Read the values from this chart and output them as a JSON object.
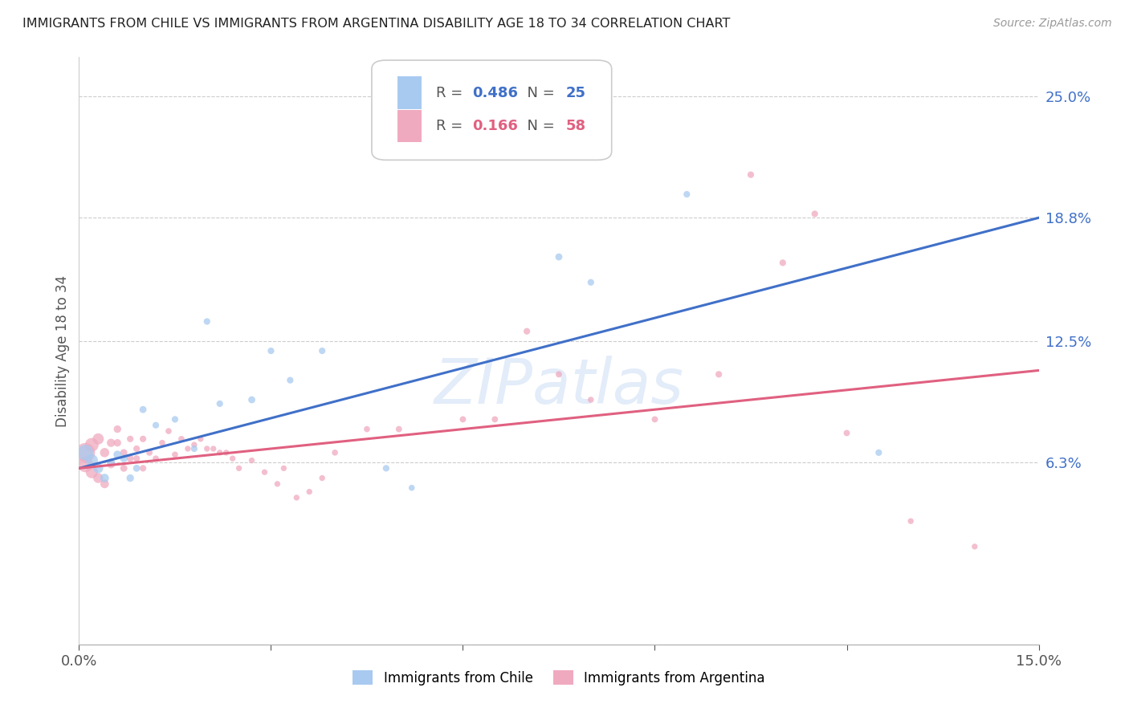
{
  "title": "IMMIGRANTS FROM CHILE VS IMMIGRANTS FROM ARGENTINA DISABILITY AGE 18 TO 34 CORRELATION CHART",
  "source": "Source: ZipAtlas.com",
  "ylabel": "Disability Age 18 to 34",
  "xlim": [
    0.0,
    0.15
  ],
  "ylim": [
    -0.03,
    0.27
  ],
  "ytick_positions": [
    0.063,
    0.125,
    0.188,
    0.25
  ],
  "ytick_labels": [
    "6.3%",
    "12.5%",
    "18.8%",
    "25.0%"
  ],
  "blue_R": 0.486,
  "blue_N": 25,
  "pink_R": 0.166,
  "pink_N": 58,
  "blue_color": "#a8caf0",
  "pink_color": "#f0aac0",
  "blue_line_color": "#4070c8",
  "pink_line_color": "#e06080",
  "blue_label_color": "#4070c8",
  "watermark_text": "ZIPatlas",
  "blue_line_x": [
    0.0,
    0.15
  ],
  "blue_line_y": [
    0.06,
    0.188
  ],
  "pink_line_x": [
    0.0,
    0.15
  ],
  "pink_line_y": [
    0.06,
    0.11
  ],
  "blue_points_x": [
    0.001,
    0.002,
    0.003,
    0.004,
    0.005,
    0.006,
    0.007,
    0.008,
    0.009,
    0.01,
    0.012,
    0.015,
    0.018,
    0.02,
    0.022,
    0.027,
    0.03,
    0.033,
    0.038,
    0.048,
    0.052,
    0.075,
    0.08,
    0.095,
    0.125
  ],
  "blue_points_y": [
    0.068,
    0.064,
    0.06,
    0.055,
    0.063,
    0.067,
    0.065,
    0.055,
    0.06,
    0.09,
    0.082,
    0.085,
    0.07,
    0.135,
    0.093,
    0.095,
    0.12,
    0.105,
    0.12,
    0.06,
    0.05,
    0.168,
    0.155,
    0.2,
    0.068
  ],
  "blue_sizes": [
    200,
    120,
    80,
    60,
    50,
    50,
    45,
    45,
    40,
    40,
    35,
    35,
    35,
    35,
    35,
    40,
    35,
    35,
    35,
    35,
    30,
    40,
    35,
    35,
    35
  ],
  "pink_points_x": [
    0.001,
    0.001,
    0.002,
    0.002,
    0.003,
    0.003,
    0.004,
    0.004,
    0.005,
    0.005,
    0.006,
    0.006,
    0.007,
    0.007,
    0.008,
    0.008,
    0.009,
    0.009,
    0.01,
    0.01,
    0.011,
    0.012,
    0.013,
    0.014,
    0.015,
    0.016,
    0.017,
    0.018,
    0.019,
    0.02,
    0.021,
    0.022,
    0.023,
    0.024,
    0.025,
    0.027,
    0.029,
    0.031,
    0.032,
    0.034,
    0.036,
    0.038,
    0.04,
    0.045,
    0.05,
    0.06,
    0.065,
    0.07,
    0.075,
    0.08,
    0.09,
    0.1,
    0.105,
    0.11,
    0.115,
    0.12,
    0.13,
    0.14
  ],
  "pink_points_y": [
    0.068,
    0.062,
    0.072,
    0.058,
    0.075,
    0.055,
    0.068,
    0.052,
    0.073,
    0.062,
    0.08,
    0.073,
    0.06,
    0.068,
    0.065,
    0.075,
    0.07,
    0.065,
    0.075,
    0.06,
    0.068,
    0.065,
    0.073,
    0.079,
    0.067,
    0.075,
    0.07,
    0.072,
    0.075,
    0.07,
    0.07,
    0.068,
    0.068,
    0.065,
    0.06,
    0.064,
    0.058,
    0.052,
    0.06,
    0.045,
    0.048,
    0.055,
    0.068,
    0.08,
    0.08,
    0.085,
    0.085,
    0.13,
    0.108,
    0.095,
    0.085,
    0.108,
    0.21,
    0.165,
    0.19,
    0.078,
    0.033,
    0.02
  ],
  "pink_sizes": [
    300,
    200,
    150,
    120,
    100,
    80,
    70,
    60,
    55,
    50,
    45,
    45,
    40,
    40,
    38,
    35,
    35,
    35,
    35,
    35,
    32,
    30,
    30,
    30,
    30,
    30,
    28,
    28,
    28,
    28,
    28,
    28,
    28,
    28,
    28,
    28,
    28,
    28,
    28,
    28,
    28,
    28,
    30,
    30,
    32,
    32,
    32,
    35,
    32,
    30,
    32,
    35,
    35,
    35,
    35,
    32,
    28,
    28
  ]
}
